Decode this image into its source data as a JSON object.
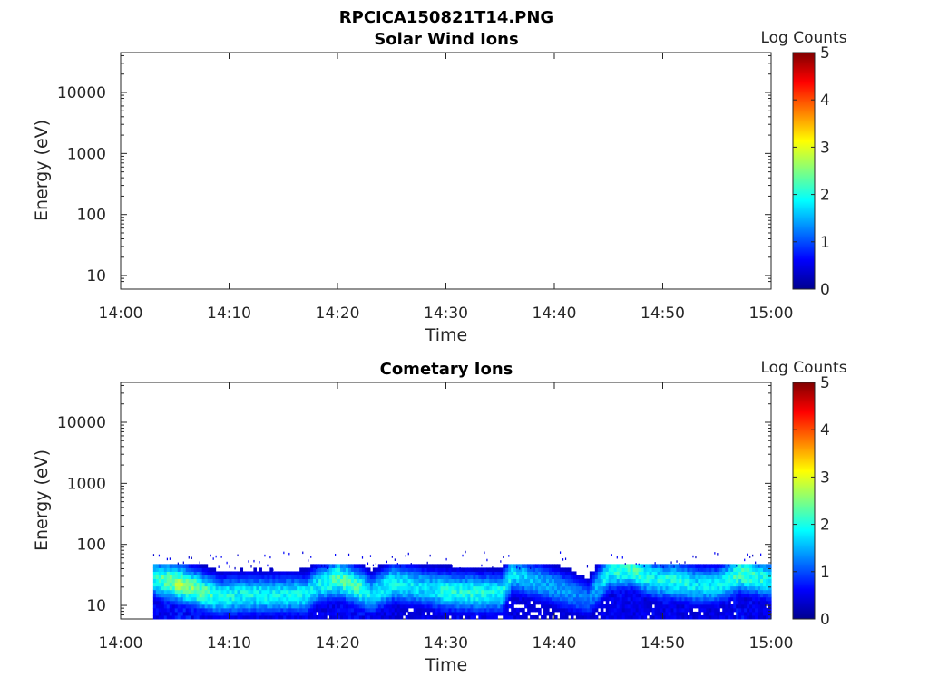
{
  "figure_title": "RPCICA150821T14.PNG",
  "colors": {
    "axis": "#262626",
    "background": "#ffffff",
    "colormap": "jet"
  },
  "chart_data": [
    {
      "type": "heatmap",
      "title": "Solar Wind Ions",
      "xlabel": "Time",
      "ylabel": "Energy (eV)",
      "x_ticks": [
        "14:00",
        "14:10",
        "14:20",
        "14:30",
        "14:40",
        "14:50",
        "15:00"
      ],
      "xlim": [
        "14:00",
        "15:00"
      ],
      "y_scale": "log",
      "y_ticks": [
        "10",
        "100",
        "1000",
        "10000"
      ],
      "ylim": [
        6,
        45000
      ],
      "colorbar": {
        "label": "Log Counts",
        "ticks": [
          "0",
          "1",
          "2",
          "3",
          "4",
          "5"
        ],
        "range": [
          0,
          5
        ]
      },
      "data": []
    },
    {
      "type": "heatmap",
      "title": "Cometary Ions",
      "xlabel": "Time",
      "ylabel": "Energy (eV)",
      "x_ticks": [
        "14:00",
        "14:10",
        "14:20",
        "14:30",
        "14:40",
        "14:50",
        "15:00"
      ],
      "xlim": [
        "14:00",
        "15:00"
      ],
      "y_scale": "log",
      "y_ticks": [
        "10",
        "100",
        "1000",
        "10000"
      ],
      "ylim": [
        6,
        45000
      ],
      "colorbar": {
        "label": "Log Counts",
        "ticks": [
          "0",
          "1",
          "2",
          "3",
          "4",
          "5"
        ],
        "range": [
          0,
          5
        ]
      },
      "data_start": "14:03",
      "data_end": "15:00",
      "bands": [
        {
          "t": "14:03",
          "peak_eV": 26,
          "max": 2.0
        },
        {
          "t": "14:05",
          "peak_eV": 22,
          "max": 2.6
        },
        {
          "t": "14:07",
          "peak_eV": 17,
          "max": 2.4
        },
        {
          "t": "14:09",
          "peak_eV": 13,
          "max": 2.0
        },
        {
          "t": "14:11",
          "peak_eV": 14,
          "max": 1.9
        },
        {
          "t": "14:14",
          "peak_eV": 14,
          "max": 1.9
        },
        {
          "t": "14:17",
          "peak_eV": 14,
          "max": 1.9
        },
        {
          "t": "14:18",
          "peak_eV": 20,
          "max": 1.8
        },
        {
          "t": "14:20",
          "peak_eV": 26,
          "max": 2.3
        },
        {
          "t": "14:22",
          "peak_eV": 18,
          "max": 2.2
        },
        {
          "t": "14:23",
          "peak_eV": 14,
          "max": 1.8
        },
        {
          "t": "14:25",
          "peak_eV": 22,
          "max": 1.9
        },
        {
          "t": "14:28",
          "peak_eV": 18,
          "max": 1.7
        },
        {
          "t": "14:30",
          "peak_eV": 16,
          "max": 2.0
        },
        {
          "t": "14:33",
          "peak_eV": 15,
          "max": 2.0
        },
        {
          "t": "14:35",
          "peak_eV": 15,
          "max": 1.9
        },
        {
          "t": "14:36",
          "peak_eV": 32,
          "max": 1.8
        },
        {
          "t": "14:38",
          "peak_eV": 24,
          "max": 1.5
        },
        {
          "t": "14:41",
          "peak_eV": 16,
          "max": 1.4
        },
        {
          "t": "14:43",
          "peak_eV": 12,
          "max": 1.2
        },
        {
          "t": "14:45",
          "peak_eV": 35,
          "max": 2.0
        },
        {
          "t": "14:47",
          "peak_eV": 38,
          "max": 2.2
        },
        {
          "t": "14:49",
          "peak_eV": 25,
          "max": 1.9
        },
        {
          "t": "14:51",
          "peak_eV": 24,
          "max": 2.0
        },
        {
          "t": "14:53",
          "peak_eV": 20,
          "max": 1.8
        },
        {
          "t": "14:55",
          "peak_eV": 20,
          "max": 1.8
        },
        {
          "t": "14:57",
          "peak_eV": 32,
          "max": 2.2
        },
        {
          "t": "14:59",
          "peak_eV": 26,
          "max": 2.0
        },
        {
          "t": "15:00",
          "peak_eV": 24,
          "max": 1.9
        }
      ],
      "sparse_high_energy_eV": [
        40,
        80
      ]
    }
  ]
}
